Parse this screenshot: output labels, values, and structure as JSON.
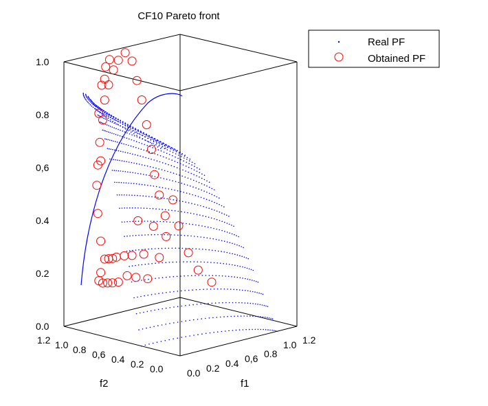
{
  "chart_data": {
    "type": "scatter",
    "title": "CF10 Pareto front",
    "axes": {
      "x": {
        "label": "f1",
        "ticks": [
          "0.0",
          "0.2",
          "0.4",
          "0,6",
          "0.8",
          "1.0",
          "1.2"
        ]
      },
      "y": {
        "label": "f2",
        "ticks": [
          "1.2",
          "1.0",
          "0.8",
          "0,6",
          "0.4",
          "0.2",
          "0.0"
        ]
      },
      "z": {
        "label": "",
        "ticks": [
          "0.0",
          "0.2",
          "0.4",
          "0,6",
          "0.8",
          "1.0"
        ]
      }
    },
    "xlim": [
      0,
      1.2
    ],
    "ylim": [
      0,
      1.2
    ],
    "zlim": [
      0,
      1.0
    ],
    "legend_position": "top-right",
    "series": [
      {
        "name": "Real PF",
        "marker": "point",
        "color": "#0000ff"
      },
      {
        "name": "Obtained PF",
        "marker": "circle",
        "color": "#ff0000"
      }
    ],
    "obtained_pf_points": [
      [
        0.98,
        1.06,
        0.4
      ],
      [
        1.02,
        1.04,
        0.3
      ],
      [
        1.06,
        0.98,
        0.2
      ],
      [
        1.08,
        0.9,
        0.14
      ],
      [
        1.12,
        0.8,
        0.1
      ],
      [
        0.1,
        0.92,
        0.22
      ],
      [
        0.14,
        0.98,
        0.18
      ],
      [
        0.22,
        1.02,
        0.16
      ],
      [
        0.3,
        1.05,
        0.15
      ],
      [
        0.38,
        1.08,
        0.14
      ],
      [
        0.48,
        1.12,
        0.13
      ],
      [
        0.6,
        1.15,
        0.14
      ],
      [
        0.72,
        1.18,
        0.12
      ],
      [
        0.86,
        1.2,
        0.1
      ],
      [
        0.18,
        0.96,
        0.26
      ],
      [
        0.26,
        1.0,
        0.25
      ],
      [
        0.34,
        1.04,
        0.24
      ],
      [
        0.44,
        1.1,
        0.23
      ],
      [
        0.56,
        1.14,
        0.22
      ],
      [
        0.66,
        1.16,
        0.21
      ],
      [
        0.8,
        1.18,
        0.2
      ],
      [
        0.92,
        1.14,
        0.18
      ],
      [
        0.95,
        1.1,
        0.26
      ],
      [
        0.88,
        1.16,
        0.3
      ],
      [
        0.75,
        1.19,
        0.33
      ],
      [
        0.05,
        0.9,
        0.45
      ],
      [
        0.08,
        0.94,
        0.55
      ],
      [
        0.12,
        0.97,
        0.62
      ],
      [
        0.16,
        0.99,
        0.7
      ],
      [
        0.2,
        1.0,
        0.78
      ],
      [
        0.24,
        1.02,
        0.85
      ],
      [
        0.3,
        1.04,
        0.9
      ],
      [
        0.36,
        1.05,
        0.95
      ],
      [
        0.42,
        1.06,
        0.98
      ],
      [
        0.5,
        1.07,
        1.0
      ],
      [
        0.58,
        1.08,
        0.96
      ],
      [
        0.64,
        1.09,
        0.88
      ],
      [
        0.7,
        1.1,
        0.8
      ],
      [
        0.76,
        1.11,
        0.7
      ],
      [
        0.82,
        1.12,
        0.6
      ],
      [
        0.86,
        1.13,
        0.5
      ],
      [
        0.9,
        1.12,
        0.42
      ],
      [
        0.94,
        1.1,
        0.34
      ],
      [
        0.04,
        0.86,
        0.35
      ],
      [
        0.06,
        0.88,
        0.65
      ],
      [
        0.1,
        0.94,
        0.82
      ],
      [
        0.15,
        0.96,
        0.92
      ],
      [
        0.22,
        0.99,
        0.98
      ],
      [
        0.28,
        1.01,
        1.0
      ],
      [
        0.02,
        0.8,
        0.97
      ]
    ]
  },
  "colors": {
    "real_pf": "#0000ff",
    "obtained_pf": "#ff0000",
    "axes": "#000000",
    "background": "#ffffff"
  }
}
